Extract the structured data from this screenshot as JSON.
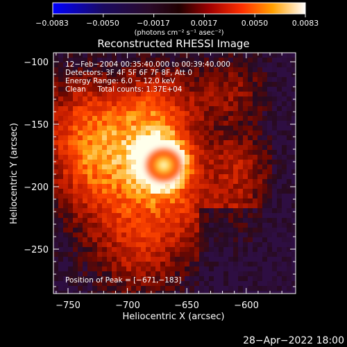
{
  "colorbar": {
    "tick_labels": [
      "−0.0083",
      "−0.0050",
      "−0.0017",
      "0.0017",
      "0.0050",
      "0.0083"
    ],
    "units_label": "(photons cm⁻² s⁻¹ asec⁻²)"
  },
  "image": {
    "title": "Reconstructed RHESSI Image",
    "info_lines": [
      "12−Feb−2004 00:35:40.000 to 00:39:40.000",
      "Detectors: 3F 4F 5F 6F 7F 8F, Att 0",
      "Energy Range: 6.0 − 12.0 keV",
      "Clean     Total counts: 1.37E+04"
    ],
    "peak_label": "Position of Peak = [−671,−183]",
    "xlabel": "Heliocentric X (arcsec)",
    "ylabel": "Heliocentric Y (arcsec)",
    "x_ticks": [
      "−750",
      "−700",
      "−650",
      "−600"
    ],
    "y_ticks": [
      "−100",
      "−150",
      "−200",
      "−250"
    ],
    "timestamp": "28−Apr−2022 18:00"
  }
}
